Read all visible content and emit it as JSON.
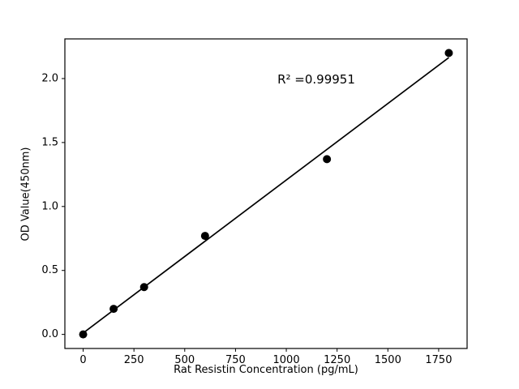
{
  "chart_data": {
    "type": "scatter",
    "title": "",
    "xlabel": "Rat Resistin Concentration (pg/mL)",
    "ylabel": "OD Value(450nm)",
    "x": [
      0,
      150,
      300,
      600,
      1200,
      1800
    ],
    "y": [
      0.0,
      0.2,
      0.37,
      0.77,
      1.37,
      2.2
    ],
    "fit_line": true,
    "annotation": {
      "text": "R² =0.99951"
    },
    "xlim": [
      -90,
      1890
    ],
    "ylim": [
      -0.11,
      2.31
    ],
    "xticks": [
      0,
      250,
      500,
      750,
      1000,
      1250,
      1500,
      1750
    ],
    "yticks": [
      0.0,
      0.5,
      1.0,
      1.5,
      2.0
    ],
    "grid": false,
    "legend": "none",
    "marker_color": "#000000",
    "line_color": "#000000",
    "background_color": "#ffffff"
  }
}
